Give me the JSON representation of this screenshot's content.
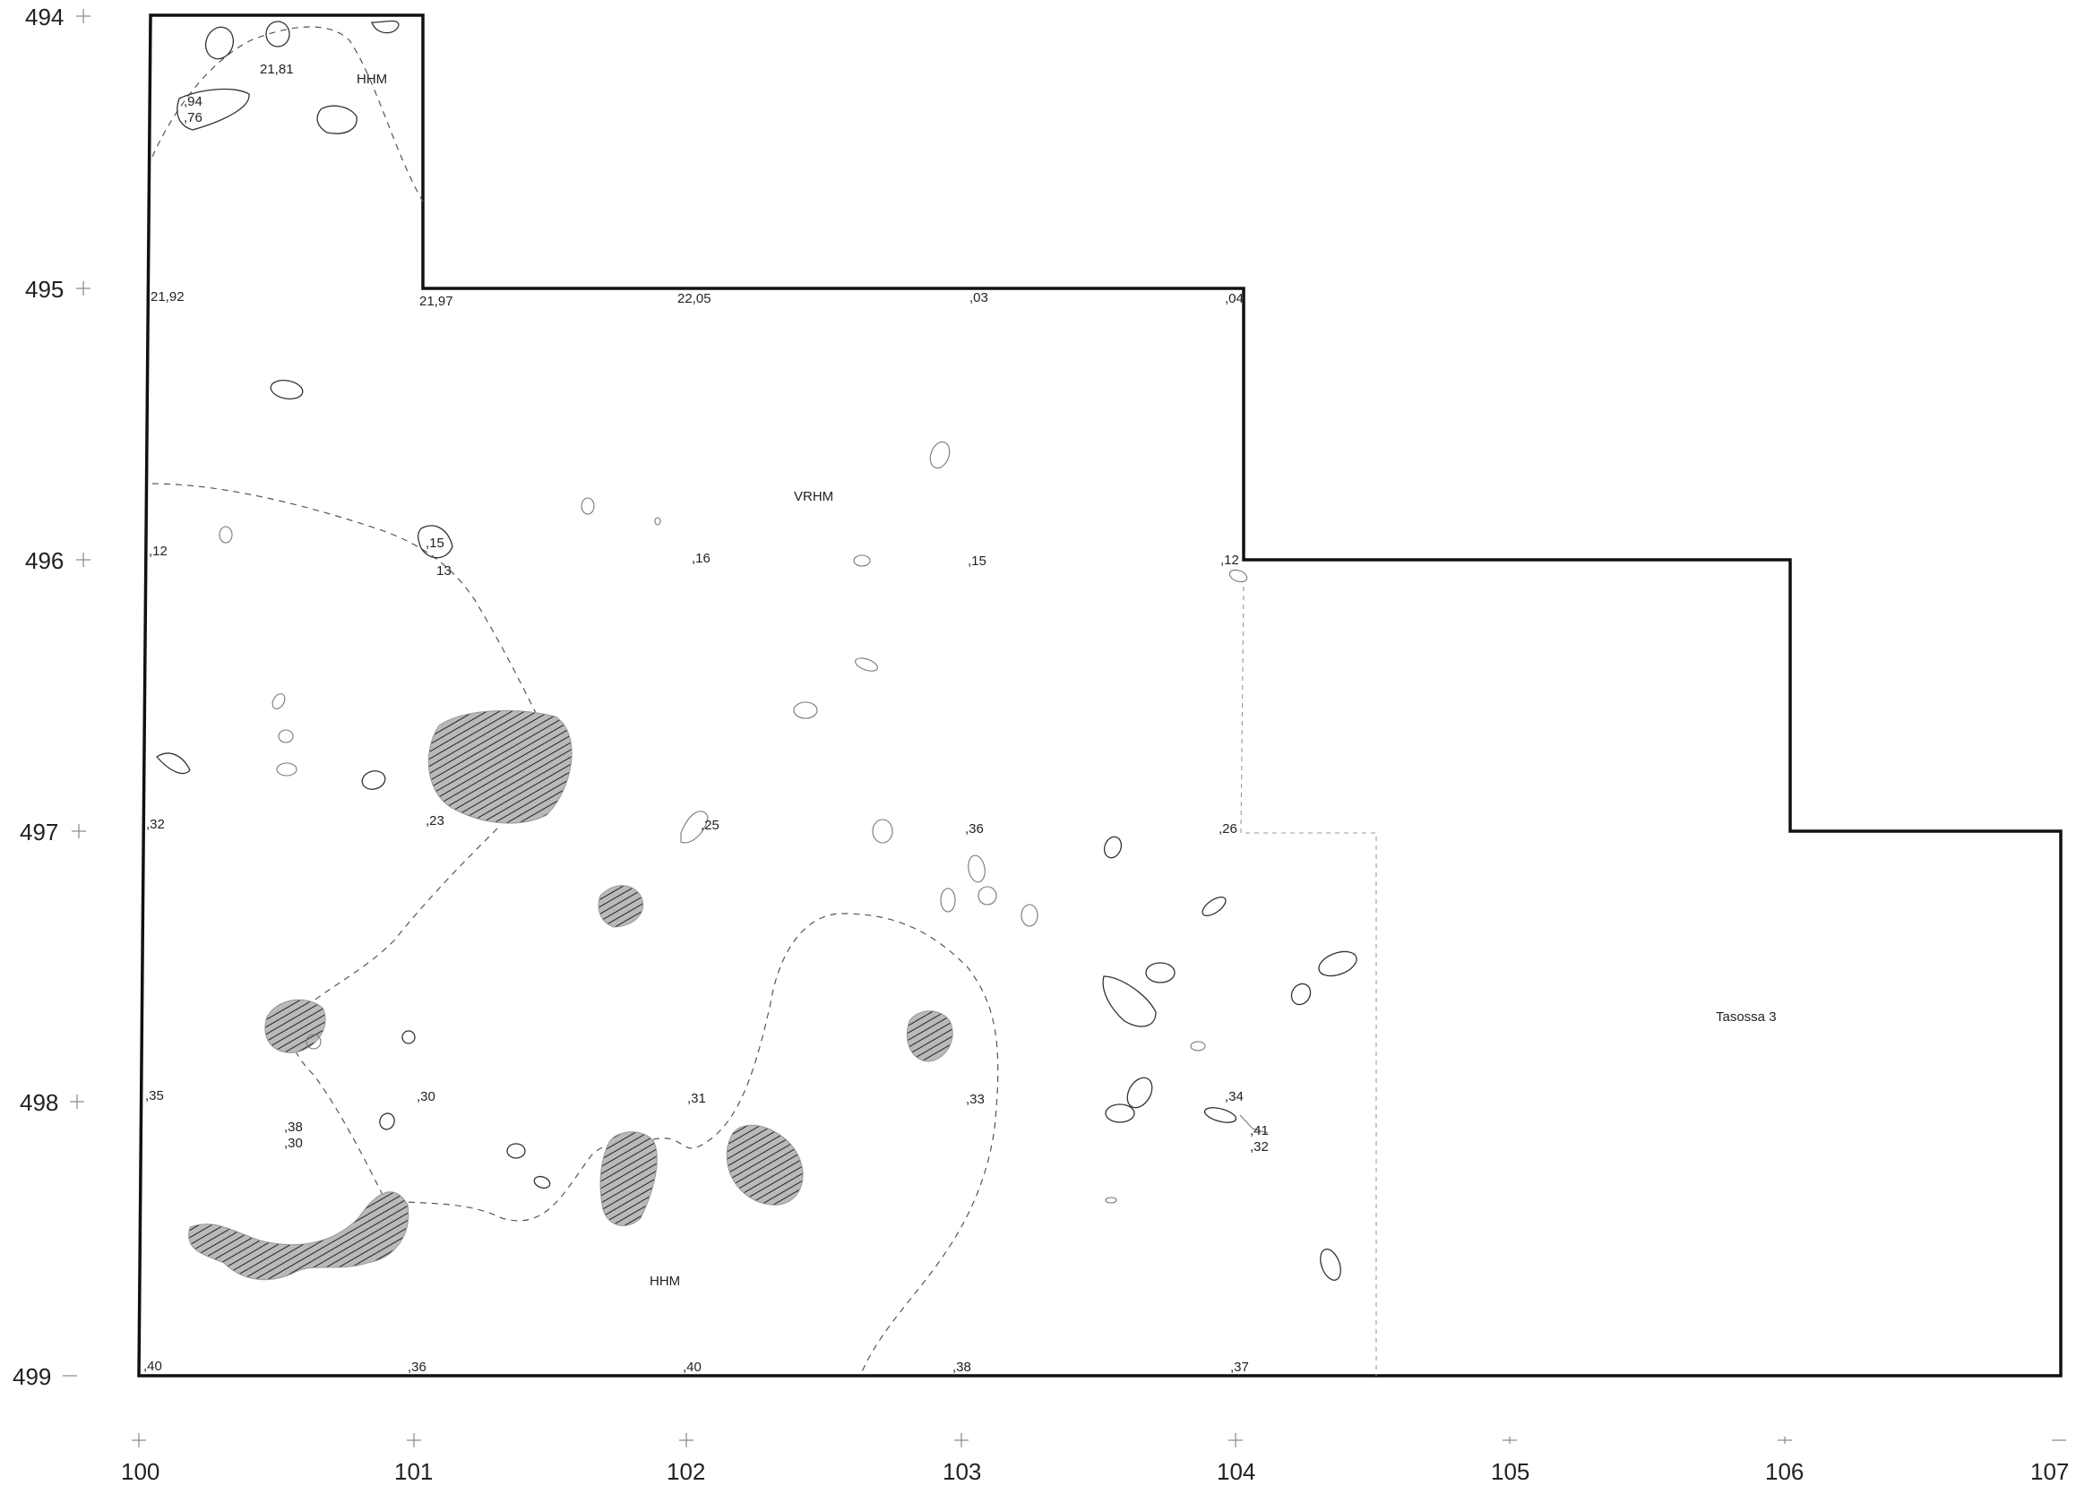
{
  "plan": {
    "y_axis_labels": [
      "494",
      "495",
      "496",
      "497",
      "498",
      "499"
    ],
    "x_axis_labels": [
      "100",
      "101",
      "102",
      "103",
      "104",
      "105",
      "106",
      "107"
    ],
    "elevations": {
      "e_top_21_81": "21,81",
      "e_94": ",94",
      "e_76": ",76",
      "e_21_92": "21,92",
      "e_21_97": "21,97",
      "e_22_05": "22,05",
      "e_03": ",03",
      "e_04": ",04",
      "e_12_left": ",12",
      "e_15_a": ",15",
      "e_13": "13",
      "e_16": ",16",
      "e_15_b": ",15",
      "e_12_right": ",12",
      "e_32_left": ",32",
      "e_23": ",23",
      "e_25": ",25",
      "e_36_mid": ",36",
      "e_26": ",26",
      "e_35": ",35",
      "e_38_left": ",38",
      "e_30_left": ",30",
      "e_30_mid": ",30",
      "e_31": ",31",
      "e_33": ",33",
      "e_34": ",34",
      "e_41": ",41",
      "e_32_right": ",32",
      "e_40_left": ",40",
      "e_36_bottom": ",36",
      "e_40_mid": ",40",
      "e_38_bottom": ",38",
      "e_37": ",37"
    },
    "zones": {
      "hhm_top": "HHM",
      "vrhm": "VRHM",
      "hhm_bottom": "HHM",
      "tasossa": "Tasossa 3"
    }
  }
}
